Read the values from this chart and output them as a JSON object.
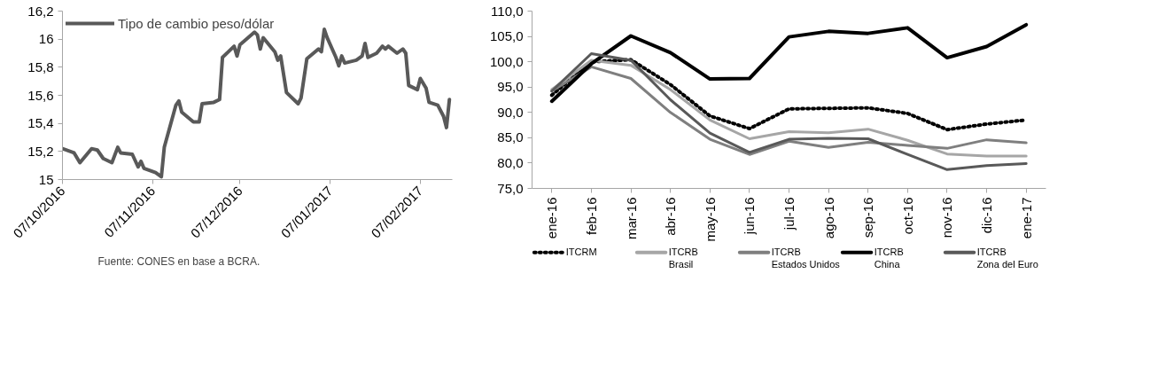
{
  "chart_data": [
    {
      "type": "line",
      "x": [
        "2016-10-07",
        "2016-10-11",
        "2016-10-13",
        "2016-10-17",
        "2016-10-19",
        "2016-10-21",
        "2016-10-24",
        "2016-10-26",
        "2016-10-27",
        "2016-10-31",
        "2016-11-02",
        "2016-11-03",
        "2016-11-04",
        "2016-11-08",
        "2016-11-10",
        "2016-11-11",
        "2016-11-15",
        "2016-11-16",
        "2016-11-17",
        "2016-11-21",
        "2016-11-23",
        "2016-11-24",
        "2016-11-28",
        "2016-11-30",
        "2016-12-01",
        "2016-12-05",
        "2016-12-06",
        "2016-12-07",
        "2016-12-12",
        "2016-12-13",
        "2016-12-14",
        "2016-12-15",
        "2016-12-19",
        "2016-12-20",
        "2016-12-21",
        "2016-12-23",
        "2016-12-27",
        "2016-12-28",
        "2016-12-30",
        "2017-01-03",
        "2017-01-04",
        "2017-01-05",
        "2017-01-06",
        "2017-01-09",
        "2017-01-10",
        "2017-01-11",
        "2017-01-12",
        "2017-01-16",
        "2017-01-18",
        "2017-01-19",
        "2017-01-20",
        "2017-01-23",
        "2017-01-25",
        "2017-01-26",
        "2017-01-27",
        "2017-01-30",
        "2017-02-01",
        "2017-02-02",
        "2017-02-03",
        "2017-02-06",
        "2017-02-07",
        "2017-02-09",
        "2017-02-10",
        "2017-02-13",
        "2017-02-15",
        "2017-02-16",
        "2017-02-17"
      ],
      "series": [
        {
          "name": "Tipo de cambio peso/dólar",
          "color": "#595959",
          "values": [
            15.22,
            15.19,
            15.12,
            15.22,
            15.21,
            15.15,
            15.12,
            15.23,
            15.19,
            15.18,
            15.09,
            15.13,
            15.08,
            15.05,
            15.02,
            15.23,
            15.53,
            15.56,
            15.48,
            15.41,
            15.41,
            15.54,
            15.55,
            15.57,
            15.87,
            15.95,
            15.88,
            15.96,
            16.05,
            16.03,
            15.93,
            16.01,
            15.91,
            15.85,
            15.88,
            15.62,
            15.54,
            15.58,
            15.86,
            15.93,
            15.91,
            16.07,
            16.01,
            15.87,
            15.81,
            15.88,
            15.83,
            15.85,
            15.88,
            15.97,
            15.87,
            15.9,
            15.95,
            15.93,
            15.95,
            15.9,
            15.93,
            15.9,
            15.67,
            15.64,
            15.72,
            15.65,
            15.55,
            15.53,
            15.45,
            15.37,
            15.57
          ]
        }
      ],
      "xlim": [
        "2016-10-07",
        "2017-02-18"
      ],
      "xticks": [
        {
          "value": "2016-10-07",
          "label": "07/10/2016"
        },
        {
          "value": "2016-11-07",
          "label": "07/11/2016"
        },
        {
          "value": "2016-12-07",
          "label": "07/12/2016"
        },
        {
          "value": "2017-01-07",
          "label": "07/01/2017"
        },
        {
          "value": "2017-02-07",
          "label": "07/02/2017"
        }
      ],
      "ylim": [
        15,
        16.2
      ],
      "yticks": [
        15,
        {
          "value": 15.2,
          "label": "15,2"
        },
        {
          "value": 15.4,
          "label": "15,4"
        },
        {
          "value": 15.6,
          "label": "15,6"
        },
        {
          "value": 15.8,
          "label": "15,8"
        },
        16,
        {
          "value": 16.2,
          "label": "16,2"
        }
      ],
      "grid": false,
      "legend": "top left",
      "line_style": "solid",
      "annotations": [
        "Fuente: CONES en base a BCRA."
      ]
    },
    {
      "type": "line",
      "categories": [
        "ene-16",
        "feb-16",
        "mar-16",
        "abr-16",
        "may-16",
        "jun-16",
        "jul-16",
        "ago-16",
        "sep-16",
        "oct-16",
        "nov-16",
        "dic-16",
        "ene-17"
      ],
      "series": [
        {
          "name": "ITCRM",
          "color": "#000000",
          "line_style": "dotted",
          "values": [
            93.4,
            100.0,
            100.4,
            95.5,
            89.3,
            86.8,
            90.7,
            90.8,
            90.9,
            89.8,
            86.6,
            87.7,
            88.5
          ]
        },
        {
          "name": "ITCRB\nBrasil",
          "color": "#a6a6a6",
          "values": [
            94.5,
            100.3,
            99.3,
            94.5,
            88.5,
            84.8,
            86.2,
            86.0,
            86.7,
            84.5,
            81.8,
            81.4,
            81.4
          ]
        },
        {
          "name": "ITCRB\nEstados Unidos",
          "color": "#7f7f7f",
          "values": [
            94.2,
            99.0,
            96.7,
            90.0,
            84.7,
            81.7,
            84.3,
            83.1,
            84.1,
            83.5,
            82.9,
            84.6,
            84.0
          ]
        },
        {
          "name": "ITCRB\nChina",
          "color": "#000000",
          "values": [
            92.2,
            99.6,
            105.1,
            101.8,
            96.6,
            96.7,
            104.9,
            106.0,
            105.6,
            106.7,
            100.8,
            103.0,
            107.3
          ]
        },
        {
          "name": "ITCRB\nZona del Euro",
          "color": "#595959",
          "values": [
            94.2,
            101.6,
            100.3,
            92.5,
            85.9,
            82.1,
            84.7,
            84.9,
            84.8,
            81.7,
            78.7,
            79.5,
            79.9
          ]
        }
      ],
      "ylim": [
        75,
        110
      ],
      "yticks": [
        {
          "value": 75,
          "label": "75,0"
        },
        {
          "value": 80,
          "label": "80,0"
        },
        {
          "value": 85,
          "label": "85,0"
        },
        {
          "value": 90,
          "label": "90,0"
        },
        {
          "value": 95,
          "label": "95,0"
        },
        {
          "value": 100,
          "label": "100,0"
        },
        {
          "value": 105,
          "label": "105,0"
        },
        {
          "value": 110,
          "label": "110,0"
        }
      ],
      "grid": false,
      "legend": "bottom",
      "line_style": "solid"
    }
  ]
}
